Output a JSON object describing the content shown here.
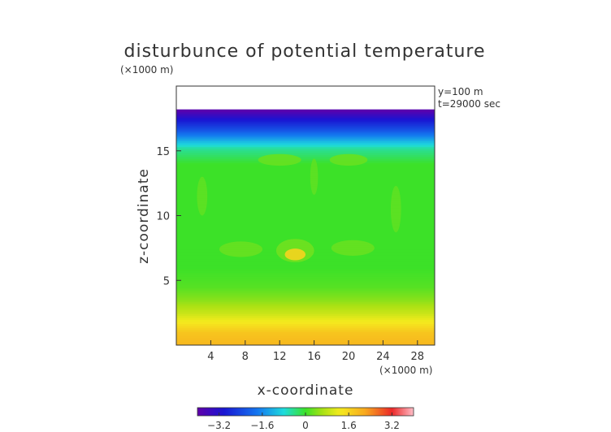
{
  "chart_data": {
    "type": "heatmap",
    "title": "disturbunce of potential temperature",
    "scale_label": "(×1000 m)",
    "annotation": {
      "line1": "y=100 m",
      "line2": "t=29000 sec"
    },
    "xlabel": "x-coordinate",
    "ylabel": "z-coordinate",
    "x_scale_label": "(×1000 m)",
    "xlim": [
      0,
      30
    ],
    "ylim": [
      0,
      20
    ],
    "xticks": [
      4,
      8,
      12,
      16,
      20,
      24,
      28
    ],
    "yticks": [
      5,
      10,
      15
    ],
    "data_top": 18.2,
    "colorbar": {
      "vmin": -4.0,
      "vmax": 4.0,
      "ticks": [
        "−3.2",
        "−1.6",
        "0",
        "1.6",
        "3.2"
      ],
      "tick_values": [
        -3.2,
        -1.6,
        0,
        1.6,
        3.2
      ]
    },
    "vertical_profile": [
      {
        "z": 0.0,
        "value": 2.0
      },
      {
        "z": 1.0,
        "value": 1.8
      },
      {
        "z": 1.8,
        "value": 1.3
      },
      {
        "z": 2.5,
        "value": 0.9
      },
      {
        "z": 3.5,
        "value": 0.45
      },
      {
        "z": 4.5,
        "value": 0.15
      },
      {
        "z": 6.0,
        "value": 0.0
      },
      {
        "z": 14.0,
        "value": 0.0
      },
      {
        "z": 15.2,
        "value": -0.5
      },
      {
        "z": 15.8,
        "value": -1.2
      },
      {
        "z": 16.6,
        "value": -2.2
      },
      {
        "z": 17.4,
        "value": -3.0
      },
      {
        "z": 18.2,
        "value": -4.0
      }
    ],
    "anomalies": [
      {
        "x": 13.8,
        "z": 7.0,
        "rx": 1.2,
        "rz": 0.45,
        "value": 1.6
      },
      {
        "x": 13.8,
        "z": 7.3,
        "rx": 2.2,
        "rz": 0.9,
        "value": 0.3
      },
      {
        "x": 7.5,
        "z": 7.4,
        "rx": 2.5,
        "rz": 0.6,
        "value": 0.25
      },
      {
        "x": 20.5,
        "z": 7.5,
        "rx": 2.5,
        "rz": 0.6,
        "value": 0.25
      },
      {
        "x": 12.0,
        "z": 14.3,
        "rx": 2.5,
        "rz": 0.45,
        "value": 0.25
      },
      {
        "x": 20.0,
        "z": 14.3,
        "rx": 2.2,
        "rz": 0.45,
        "value": 0.25
      },
      {
        "x": 3.0,
        "z": 11.5,
        "rx": 0.6,
        "rz": 1.5,
        "value": 0.2
      },
      {
        "x": 25.5,
        "z": 10.5,
        "rx": 0.6,
        "rz": 1.8,
        "value": 0.2
      },
      {
        "x": 16.0,
        "z": 13.0,
        "rx": 0.45,
        "rz": 1.4,
        "value": 0.2
      }
    ]
  }
}
